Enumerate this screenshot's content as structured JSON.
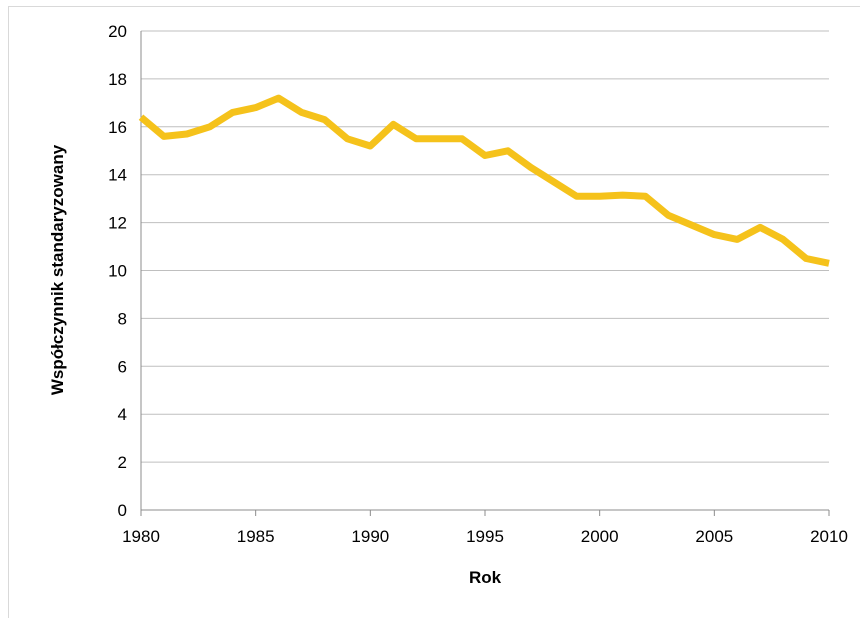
{
  "chart_data": {
    "type": "line",
    "xlabel": "Rok",
    "ylabel": "Współczynnik standaryzowany",
    "xlim": [
      1980,
      2010
    ],
    "ylim": [
      0,
      20
    ],
    "x_ticks": [
      "1980",
      "1985",
      "1990",
      "1995",
      "2000",
      "2005",
      "2010"
    ],
    "y_ticks": [
      "0",
      "2",
      "4",
      "6",
      "8",
      "10",
      "12",
      "14",
      "16",
      "18",
      "20"
    ],
    "grid": "horizontal",
    "legend": "none",
    "series": [
      {
        "color": "#f5c21b",
        "x": [
          1980,
          1981,
          1982,
          1983,
          1984,
          1985,
          1986,
          1987,
          1988,
          1989,
          1990,
          1991,
          1992,
          1993,
          1994,
          1995,
          1996,
          1997,
          1998,
          1999,
          2000,
          2001,
          2002,
          2003,
          2004,
          2005,
          2006,
          2007,
          2008,
          2009,
          2010
        ],
        "y": [
          16.4,
          15.6,
          15.7,
          16.0,
          16.6,
          16.8,
          17.2,
          16.6,
          16.3,
          15.5,
          15.2,
          16.1,
          15.5,
          15.5,
          15.5,
          14.8,
          15.0,
          14.3,
          13.7,
          13.1,
          13.1,
          13.15,
          13.1,
          12.3,
          11.9,
          11.5,
          11.3,
          11.8,
          11.3,
          10.5,
          10.3
        ]
      }
    ]
  }
}
